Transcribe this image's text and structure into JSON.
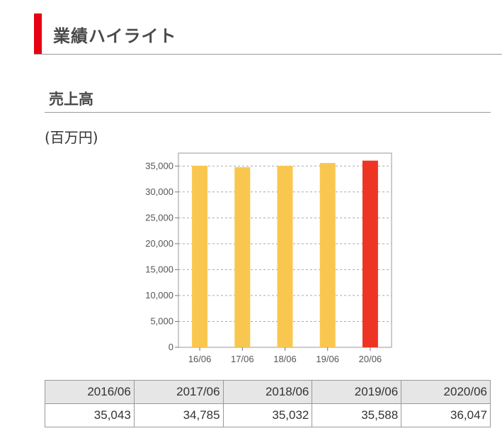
{
  "section": {
    "title": "業績ハイライト"
  },
  "subsection": {
    "title": "売上高",
    "unit": "(百万円)"
  },
  "colors": {
    "accent": "#e60012",
    "bar": "#f9c74f",
    "bar_highlight": "#ee3524"
  },
  "chart_data": {
    "type": "bar",
    "categories": [
      "16/06",
      "17/06",
      "18/06",
      "19/06",
      "20/06"
    ],
    "values": [
      35043,
      34785,
      35032,
      35588,
      36047
    ],
    "highlight_index": 4,
    "ylim": [
      0,
      37500
    ],
    "yticks": [
      0,
      5000,
      10000,
      15000,
      20000,
      25000,
      30000,
      35000
    ],
    "ytick_labels": [
      "0",
      "5,000",
      "10,000",
      "15,000",
      "20,000",
      "25,000",
      "30,000",
      "35,000"
    ],
    "grid": true,
    "title": "",
    "xlabel": "",
    "ylabel": ""
  },
  "table": {
    "headers": [
      "2016/06",
      "2017/06",
      "2018/06",
      "2019/06",
      "2020/06"
    ],
    "values": [
      "35,043",
      "34,785",
      "35,032",
      "35,588",
      "36,047"
    ]
  }
}
